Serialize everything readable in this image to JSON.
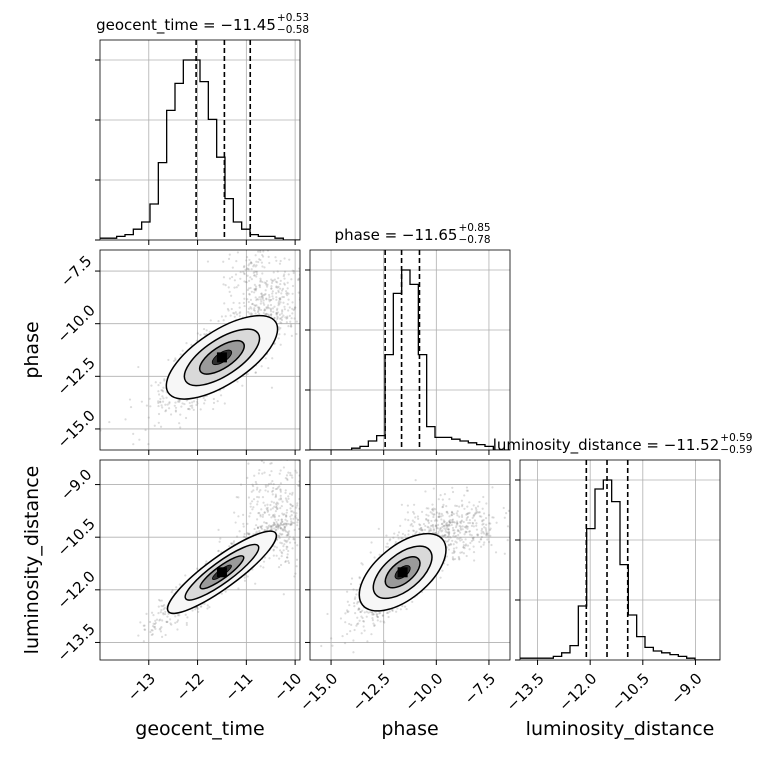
{
  "chart_data": {
    "type": "corner",
    "parameters": [
      "geocent_time",
      "phase",
      "luminosity_distance"
    ],
    "titles": [
      {
        "name": "geocent_time",
        "median": "−11.45",
        "plus": "+0.53",
        "minus": "−0.58"
      },
      {
        "name": "phase",
        "median": "−11.65",
        "plus": "+0.85",
        "minus": "−0.78"
      },
      {
        "name": "luminosity_distance",
        "median": "−11.52",
        "plus": "+0.59",
        "minus": "−0.59"
      }
    ],
    "ranges": [
      [
        -14.0,
        -9.9
      ],
      [
        -16.0,
        -6.5
      ],
      [
        -14.0,
        -8.3
      ]
    ],
    "ticks": [
      {
        "values": [
          -13,
          -12,
          -11,
          -10
        ],
        "labels": [
          "−13",
          "−12",
          "−11",
          "−10"
        ]
      },
      {
        "values": [
          -15.0,
          -12.5,
          -10.0,
          -7.5
        ],
        "labels": [
          "−15.0",
          "−12.5",
          "−10.0",
          "−7.5"
        ]
      },
      {
        "values": [
          -13.5,
          -12.0,
          -10.5,
          -9.0
        ],
        "labels": [
          "−13.5",
          "−12.0",
          "−10.5",
          "−9.0"
        ]
      }
    ],
    "quantiles": [
      [
        -12.03,
        -11.45,
        -10.92
      ],
      [
        -12.43,
        -11.65,
        -10.8
      ],
      [
        -12.11,
        -11.52,
        -10.93
      ]
    ],
    "histograms": [
      {
        "bins": 24,
        "counts": [
          0.01,
          0.01,
          0.02,
          0.03,
          0.06,
          0.1,
          0.2,
          0.43,
          0.72,
          0.87,
          1.0,
          1.0,
          0.88,
          0.67,
          0.46,
          0.23,
          0.1,
          0.06,
          0.03,
          0.02,
          0.02,
          0.01,
          0.0,
          0.0
        ]
      },
      {
        "bins": 24,
        "counts": [
          0.0,
          0.0,
          0.0,
          0.0,
          0.0,
          0.01,
          0.02,
          0.05,
          0.08,
          0.53,
          0.87,
          1.0,
          0.92,
          0.53,
          0.13,
          0.07,
          0.07,
          0.06,
          0.05,
          0.04,
          0.03,
          0.02,
          0.0,
          0.0
        ]
      },
      {
        "bins": 24,
        "counts": [
          0.01,
          0.01,
          0.01,
          0.01,
          0.02,
          0.04,
          0.08,
          0.3,
          0.73,
          0.95,
          1.0,
          0.88,
          0.53,
          0.25,
          0.13,
          0.07,
          0.05,
          0.04,
          0.03,
          0.02,
          0.01,
          0.0,
          0.0,
          0.0
        ]
      }
    ],
    "grid": true,
    "contour_color": "#000000",
    "sample_color": "#808080"
  }
}
